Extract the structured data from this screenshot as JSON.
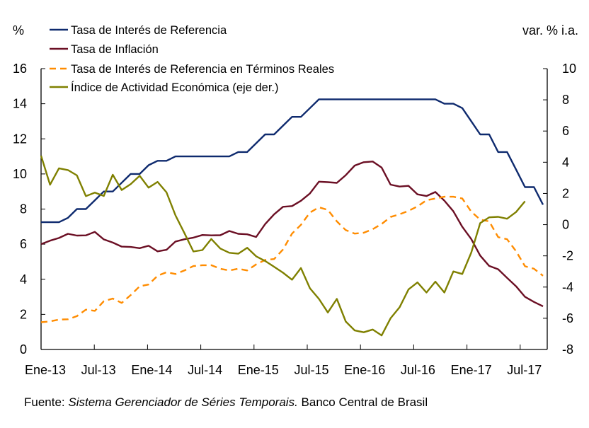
{
  "chart_data": {
    "type": "line",
    "left_axis_label": "%",
    "right_axis_label": "var. % i.a.",
    "x_tick_labels": [
      "Ene-13",
      "Jul-13",
      "Ene-14",
      "Jul-14",
      "Ene-15",
      "Jul-15",
      "Ene-16",
      "Jul-16",
      "Ene-17",
      "Jul-17"
    ],
    "x_start": "Ene-13",
    "frequency": "monthly",
    "y_left": {
      "min": 0,
      "max": 16,
      "step": 2,
      "ticks": [
        "0",
        "2",
        "4",
        "6",
        "8",
        "10",
        "12",
        "14",
        "16"
      ]
    },
    "y_right": {
      "min": -8,
      "max": 10,
      "step": 2,
      "ticks": [
        "-8",
        "-6",
        "-4",
        "-2",
        "0",
        "2",
        "4",
        "6",
        "8",
        "10"
      ]
    },
    "grid": false,
    "legend_position": "top-left",
    "series": [
      {
        "name": "Tasa de Interés de Referencia",
        "axis": "left",
        "style": "solid",
        "color": "#0e2a6e",
        "values": [
          7.25,
          7.25,
          7.25,
          7.5,
          8.0,
          8.0,
          8.5,
          9.0,
          9.0,
          9.5,
          10.0,
          10.0,
          10.5,
          10.75,
          10.75,
          11.0,
          11.0,
          11.0,
          11.0,
          11.0,
          11.0,
          11.0,
          11.25,
          11.25,
          11.75,
          12.25,
          12.25,
          12.75,
          13.25,
          13.25,
          13.75,
          14.25,
          14.25,
          14.25,
          14.25,
          14.25,
          14.25,
          14.25,
          14.25,
          14.25,
          14.25,
          14.25,
          14.25,
          14.25,
          14.25,
          14.0,
          14.0,
          13.75,
          13.0,
          12.25,
          12.25,
          11.25,
          11.25,
          10.25,
          9.25,
          9.25,
          8.25
        ]
      },
      {
        "name": "Tasa de Inflación",
        "axis": "left",
        "style": "solid",
        "color": "#6b0f24",
        "values": [
          6.0,
          6.2,
          6.35,
          6.59,
          6.49,
          6.5,
          6.7,
          6.27,
          6.09,
          5.86,
          5.84,
          5.77,
          5.91,
          5.59,
          5.68,
          6.15,
          6.28,
          6.37,
          6.52,
          6.5,
          6.51,
          6.75,
          6.59,
          6.56,
          6.41,
          7.14,
          7.7,
          8.13,
          8.17,
          8.47,
          8.89,
          9.56,
          9.53,
          9.49,
          9.93,
          10.48,
          10.67,
          10.71,
          10.36,
          9.39,
          9.28,
          9.32,
          8.84,
          8.74,
          8.97,
          8.48,
          7.87,
          6.99,
          6.29,
          5.35,
          4.76,
          4.57,
          4.08,
          3.6,
          3.0,
          2.71,
          2.46
        ]
      },
      {
        "name": "Tasa de Interés de Referencia en Términos Reales",
        "axis": "left",
        "style": "dashed",
        "color": "#ff8c00",
        "values": [
          1.55,
          1.6,
          1.7,
          1.72,
          1.9,
          2.27,
          2.2,
          2.75,
          2.9,
          2.65,
          3.1,
          3.6,
          3.7,
          4.2,
          4.4,
          4.3,
          4.5,
          4.75,
          4.8,
          4.8,
          4.6,
          4.5,
          4.6,
          4.5,
          4.85,
          5.1,
          5.15,
          5.7,
          6.6,
          7.1,
          7.8,
          8.1,
          7.95,
          7.3,
          6.8,
          6.6,
          6.65,
          6.85,
          7.15,
          7.55,
          7.7,
          7.9,
          8.15,
          8.5,
          8.6,
          8.7,
          8.7,
          8.6,
          7.85,
          7.4,
          7.3,
          6.4,
          6.28,
          5.6,
          4.74,
          4.6,
          4.2
        ]
      },
      {
        "name": "Índice de Actividad Económica (eje der.)",
        "axis": "right",
        "style": "solid",
        "color": "#7f8000",
        "values": [
          4.42,
          2.56,
          3.61,
          3.5,
          3.16,
          1.83,
          2.05,
          1.84,
          3.2,
          2.22,
          2.6,
          3.13,
          2.37,
          2.74,
          2.07,
          0.59,
          -0.55,
          -1.72,
          -1.63,
          -0.92,
          -1.53,
          -1.8,
          -1.86,
          -1.48,
          -2.03,
          -2.33,
          -2.7,
          -3.08,
          -3.53,
          -2.78,
          -4.08,
          -4.76,
          -5.63,
          -4.76,
          -6.21,
          -6.78,
          -6.9,
          -6.72,
          -7.1,
          -6.0,
          -5.3,
          -4.15,
          -3.7,
          -4.35,
          -3.65,
          -4.35,
          -3.0,
          -3.16,
          -1.79,
          0.1,
          0.47,
          0.5,
          0.38,
          0.81,
          1.5
        ]
      }
    ]
  },
  "footer": {
    "prefix": "Fuente: ",
    "source_italic": "Sistema Gerenciador de Séries Temporais.",
    "suffix": " Banco Central de Brasil"
  }
}
